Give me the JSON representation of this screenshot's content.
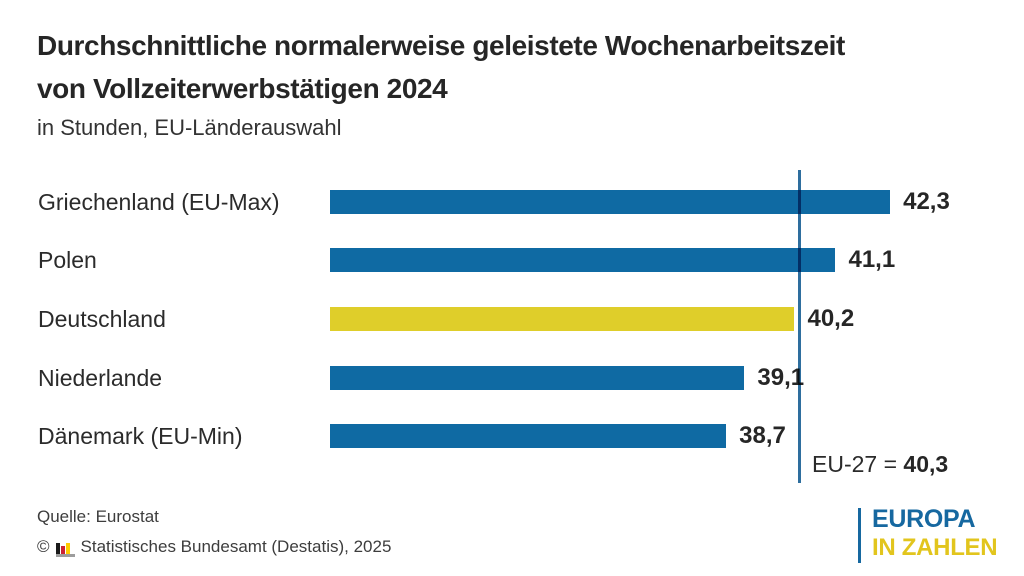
{
  "title": {
    "line1": "Durchschnittliche normalerweise geleistete Wochenarbeitszeit",
    "line2": "von Vollzeiterwerbstätigen 2024",
    "subtitle": "in Stunden, EU-Länderauswahl"
  },
  "chart_data": {
    "type": "bar",
    "orientation": "horizontal",
    "unit": "Stunden",
    "categories": [
      "Griechenland (EU-Max)",
      "Polen",
      "Deutschland",
      "Niederlande",
      "Dänemark (EU-Min)"
    ],
    "values": [
      42.3,
      41.1,
      40.2,
      39.1,
      38.7
    ],
    "value_labels": [
      "42,3",
      "41,1",
      "40,2",
      "39,1",
      "38,7"
    ],
    "highlight_index": 2,
    "axis_min": 30,
    "axis_max": 43,
    "grid": false,
    "legend": false,
    "reference_line": {
      "value": 40.3,
      "label_prefix": "EU-27 = ",
      "value_label": "40,3"
    },
    "colors": {
      "bar": "#0f6aa3",
      "highlight_bar": "#dfce2a",
      "reference_line": "#2e6e9e"
    }
  },
  "footer": {
    "source": "Quelle: Eurostat",
    "copyright_symbol": "©",
    "copyright_text": "Statistisches Bundesamt (Destatis), 2025",
    "icon_colors": {
      "black": "#1a1a1a",
      "red": "#cc2233",
      "gold": "#ffcc00",
      "base_grey": "#9d9d9d"
    }
  },
  "logo": {
    "line1": "EUROPA",
    "line2": "IN ZAHLEN",
    "colors": {
      "blue": "#1668a0",
      "yellow": "#e2c51d"
    }
  }
}
